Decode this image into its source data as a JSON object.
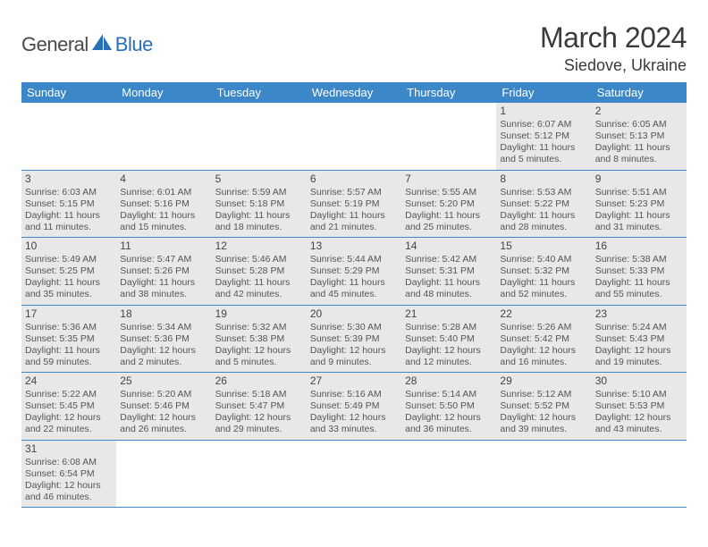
{
  "logo": {
    "general": "General",
    "blue": "Blue"
  },
  "title": "March 2024",
  "location": "Siedove, Ukraine",
  "colors": {
    "header_bg": "#3b87c8",
    "header_text": "#ffffff",
    "cell_fill": "#e8e8e8",
    "border": "#3b87c8",
    "text": "#555555",
    "logo_blue": "#2a6db8",
    "logo_gray": "#4a4a4a"
  },
  "day_headers": [
    "Sunday",
    "Monday",
    "Tuesday",
    "Wednesday",
    "Thursday",
    "Friday",
    "Saturday"
  ],
  "weeks": [
    [
      null,
      null,
      null,
      null,
      null,
      {
        "n": "1",
        "sr": "Sunrise: 6:07 AM",
        "ss": "Sunset: 5:12 PM",
        "d1": "Daylight: 11 hours",
        "d2": "and 5 minutes."
      },
      {
        "n": "2",
        "sr": "Sunrise: 6:05 AM",
        "ss": "Sunset: 5:13 PM",
        "d1": "Daylight: 11 hours",
        "d2": "and 8 minutes."
      }
    ],
    [
      {
        "n": "3",
        "sr": "Sunrise: 6:03 AM",
        "ss": "Sunset: 5:15 PM",
        "d1": "Daylight: 11 hours",
        "d2": "and 11 minutes."
      },
      {
        "n": "4",
        "sr": "Sunrise: 6:01 AM",
        "ss": "Sunset: 5:16 PM",
        "d1": "Daylight: 11 hours",
        "d2": "and 15 minutes."
      },
      {
        "n": "5",
        "sr": "Sunrise: 5:59 AM",
        "ss": "Sunset: 5:18 PM",
        "d1": "Daylight: 11 hours",
        "d2": "and 18 minutes."
      },
      {
        "n": "6",
        "sr": "Sunrise: 5:57 AM",
        "ss": "Sunset: 5:19 PM",
        "d1": "Daylight: 11 hours",
        "d2": "and 21 minutes."
      },
      {
        "n": "7",
        "sr": "Sunrise: 5:55 AM",
        "ss": "Sunset: 5:20 PM",
        "d1": "Daylight: 11 hours",
        "d2": "and 25 minutes."
      },
      {
        "n": "8",
        "sr": "Sunrise: 5:53 AM",
        "ss": "Sunset: 5:22 PM",
        "d1": "Daylight: 11 hours",
        "d2": "and 28 minutes."
      },
      {
        "n": "9",
        "sr": "Sunrise: 5:51 AM",
        "ss": "Sunset: 5:23 PM",
        "d1": "Daylight: 11 hours",
        "d2": "and 31 minutes."
      }
    ],
    [
      {
        "n": "10",
        "sr": "Sunrise: 5:49 AM",
        "ss": "Sunset: 5:25 PM",
        "d1": "Daylight: 11 hours",
        "d2": "and 35 minutes."
      },
      {
        "n": "11",
        "sr": "Sunrise: 5:47 AM",
        "ss": "Sunset: 5:26 PM",
        "d1": "Daylight: 11 hours",
        "d2": "and 38 minutes."
      },
      {
        "n": "12",
        "sr": "Sunrise: 5:46 AM",
        "ss": "Sunset: 5:28 PM",
        "d1": "Daylight: 11 hours",
        "d2": "and 42 minutes."
      },
      {
        "n": "13",
        "sr": "Sunrise: 5:44 AM",
        "ss": "Sunset: 5:29 PM",
        "d1": "Daylight: 11 hours",
        "d2": "and 45 minutes."
      },
      {
        "n": "14",
        "sr": "Sunrise: 5:42 AM",
        "ss": "Sunset: 5:31 PM",
        "d1": "Daylight: 11 hours",
        "d2": "and 48 minutes."
      },
      {
        "n": "15",
        "sr": "Sunrise: 5:40 AM",
        "ss": "Sunset: 5:32 PM",
        "d1": "Daylight: 11 hours",
        "d2": "and 52 minutes."
      },
      {
        "n": "16",
        "sr": "Sunrise: 5:38 AM",
        "ss": "Sunset: 5:33 PM",
        "d1": "Daylight: 11 hours",
        "d2": "and 55 minutes."
      }
    ],
    [
      {
        "n": "17",
        "sr": "Sunrise: 5:36 AM",
        "ss": "Sunset: 5:35 PM",
        "d1": "Daylight: 11 hours",
        "d2": "and 59 minutes."
      },
      {
        "n": "18",
        "sr": "Sunrise: 5:34 AM",
        "ss": "Sunset: 5:36 PM",
        "d1": "Daylight: 12 hours",
        "d2": "and 2 minutes."
      },
      {
        "n": "19",
        "sr": "Sunrise: 5:32 AM",
        "ss": "Sunset: 5:38 PM",
        "d1": "Daylight: 12 hours",
        "d2": "and 5 minutes."
      },
      {
        "n": "20",
        "sr": "Sunrise: 5:30 AM",
        "ss": "Sunset: 5:39 PM",
        "d1": "Daylight: 12 hours",
        "d2": "and 9 minutes."
      },
      {
        "n": "21",
        "sr": "Sunrise: 5:28 AM",
        "ss": "Sunset: 5:40 PM",
        "d1": "Daylight: 12 hours",
        "d2": "and 12 minutes."
      },
      {
        "n": "22",
        "sr": "Sunrise: 5:26 AM",
        "ss": "Sunset: 5:42 PM",
        "d1": "Daylight: 12 hours",
        "d2": "and 16 minutes."
      },
      {
        "n": "23",
        "sr": "Sunrise: 5:24 AM",
        "ss": "Sunset: 5:43 PM",
        "d1": "Daylight: 12 hours",
        "d2": "and 19 minutes."
      }
    ],
    [
      {
        "n": "24",
        "sr": "Sunrise: 5:22 AM",
        "ss": "Sunset: 5:45 PM",
        "d1": "Daylight: 12 hours",
        "d2": "and 22 minutes."
      },
      {
        "n": "25",
        "sr": "Sunrise: 5:20 AM",
        "ss": "Sunset: 5:46 PM",
        "d1": "Daylight: 12 hours",
        "d2": "and 26 minutes."
      },
      {
        "n": "26",
        "sr": "Sunrise: 5:18 AM",
        "ss": "Sunset: 5:47 PM",
        "d1": "Daylight: 12 hours",
        "d2": "and 29 minutes."
      },
      {
        "n": "27",
        "sr": "Sunrise: 5:16 AM",
        "ss": "Sunset: 5:49 PM",
        "d1": "Daylight: 12 hours",
        "d2": "and 33 minutes."
      },
      {
        "n": "28",
        "sr": "Sunrise: 5:14 AM",
        "ss": "Sunset: 5:50 PM",
        "d1": "Daylight: 12 hours",
        "d2": "and 36 minutes."
      },
      {
        "n": "29",
        "sr": "Sunrise: 5:12 AM",
        "ss": "Sunset: 5:52 PM",
        "d1": "Daylight: 12 hours",
        "d2": "and 39 minutes."
      },
      {
        "n": "30",
        "sr": "Sunrise: 5:10 AM",
        "ss": "Sunset: 5:53 PM",
        "d1": "Daylight: 12 hours",
        "d2": "and 43 minutes."
      }
    ],
    [
      {
        "n": "31",
        "sr": "Sunrise: 6:08 AM",
        "ss": "Sunset: 6:54 PM",
        "d1": "Daylight: 12 hours",
        "d2": "and 46 minutes."
      },
      null,
      null,
      null,
      null,
      null,
      null
    ]
  ]
}
